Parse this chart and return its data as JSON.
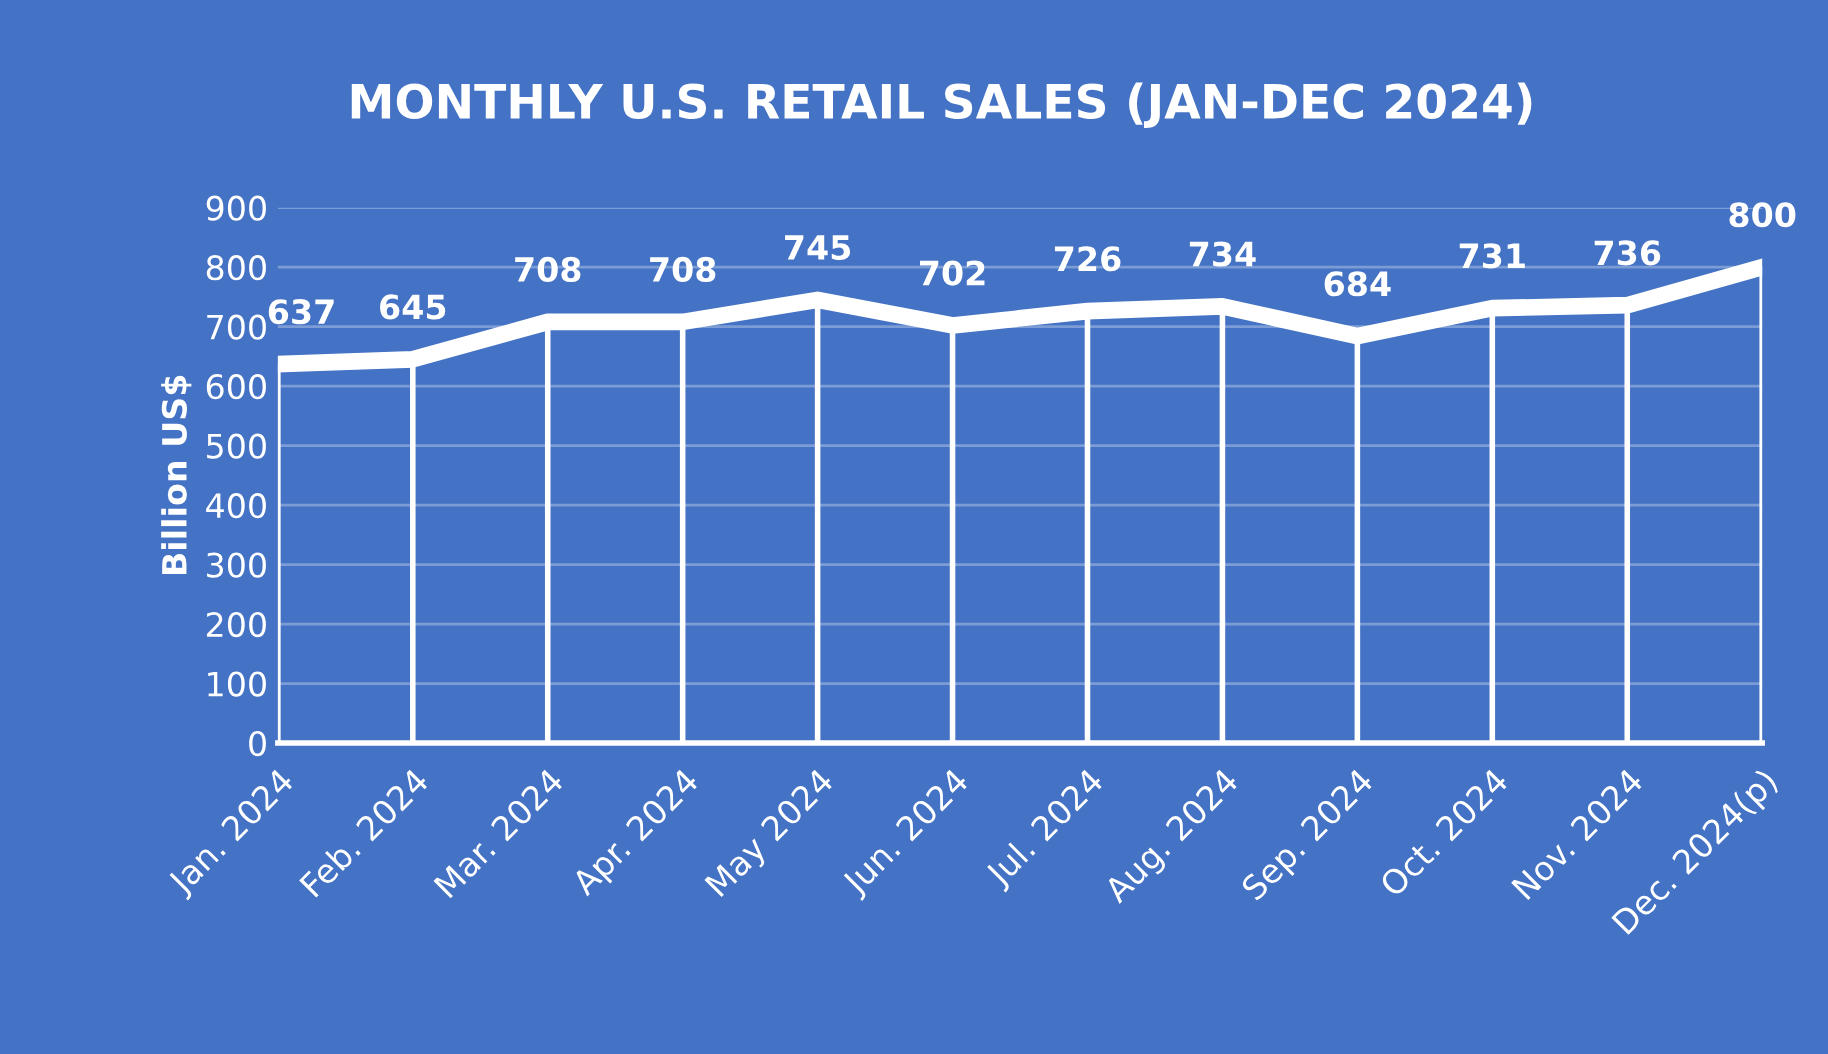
{
  "chart_data": {
    "type": "line",
    "title": "MONTHLY U.S. RETAIL SALES (JAN-DEC 2024)",
    "ylabel": "Billion US$",
    "categories": [
      "Jan. 2024",
      "Feb. 2024",
      "Mar. 2024",
      "Apr. 2024",
      "May 2024",
      "Jun. 2024",
      "Jul. 2024",
      "Aug. 2024",
      "Sep. 2024",
      "Oct. 2024",
      "Nov. 2024",
      "Dec. 2024(p)"
    ],
    "series": [
      {
        "color": "#ffffff",
        "values": [
          637,
          645,
          708,
          708,
          745,
          702,
          726,
          734,
          684,
          731,
          736,
          800
        ]
      }
    ],
    "ylim": [
      0,
      900
    ],
    "yticks": [
      0,
      100,
      200,
      300,
      400,
      500,
      600,
      700,
      800,
      900
    ],
    "grid": true,
    "legend": false,
    "marker": "none",
    "line_style": "solid",
    "data_labels": true
  }
}
